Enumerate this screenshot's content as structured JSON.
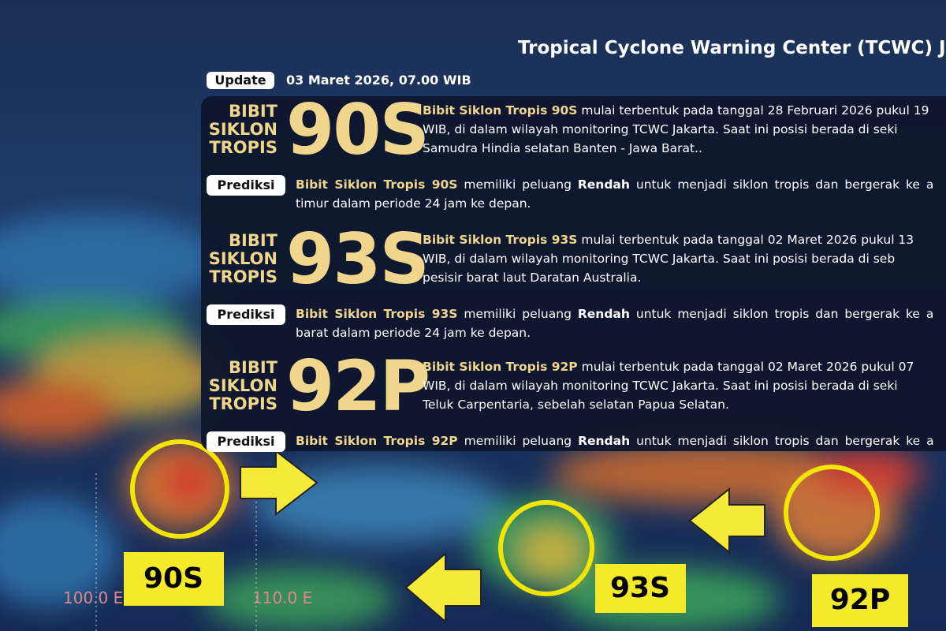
{
  "header": {
    "title": "Tropical Cyclone Warning Center (TCWC) Jakart",
    "update_badge": "Update",
    "update_time": "03 Maret 2026, 07.00 WIB"
  },
  "cards": [
    {
      "label": [
        "BIBIT",
        "SIKLON",
        "TROPIS"
      ],
      "code": "90S",
      "name": "Bibit Siklon Tropis 90S",
      "description": [
        "mulai terbentuk pada tanggal 28 Februari 2026 pukul 19",
        "WIB, di dalam wilayah monitoring TCWC Jakarta. Saat ini posisi berada di seki",
        "Samudra Hindia selatan Banten - Jawa Barat.."
      ],
      "prediction": {
        "badge": "Prediksi",
        "name": "Bibit Siklon Tropis 90S",
        "text_before": "memiliki peluang",
        "level": "Rendah",
        "text_after": "untuk menjadi siklon tropis dan bergerak ke a",
        "line2": "timur dalam periode 24 jam ke depan."
      }
    },
    {
      "label": [
        "BIBIT",
        "SIKLON",
        "TROPIS"
      ],
      "code": "93S",
      "name": "Bibit Siklon Tropis 93S",
      "description": [
        "mulai terbentuk pada tanggal 02 Maret 2026 pukul 13",
        "WIB, di dalam wilayah monitoring TCWC Jakarta. Saat ini posisi berada di seb",
        "pesisir barat laut Daratan Australia."
      ],
      "prediction": {
        "badge": "Prediksi",
        "name": "Bibit Siklon Tropis 93S",
        "text_before": "memiliki peluang",
        "level": "Rendah",
        "text_after": "untuk menjadi siklon tropis dan bergerak ke a",
        "line2": "barat dalam periode 24 jam ke depan."
      }
    },
    {
      "label": [
        "BIBIT",
        "SIKLON",
        "TROPIS"
      ],
      "code": "92P",
      "name": "Bibit Siklon Tropis 92P",
      "description": [
        "mulai terbentuk pada tanggal 02 Maret 2026 pukul 07",
        "WIB, di dalam wilayah monitoring TCWC Jakarta. Saat ini posisi berada di seki",
        "Teluk Carpentaria, sebelah selatan Papua Selatan."
      ],
      "prediction": {
        "badge": "Prediksi",
        "name": "Bibit Siklon Tropis 92P",
        "text_before": "memiliki peluang",
        "level": "Rendah",
        "text_after": "untuk menjadi siklon tropis dan bergerak ke a"
      }
    }
  ],
  "map": {
    "markers": [
      "90S",
      "93S",
      "92P"
    ],
    "longitudes": [
      "100.0 E",
      "110.0 E"
    ]
  }
}
